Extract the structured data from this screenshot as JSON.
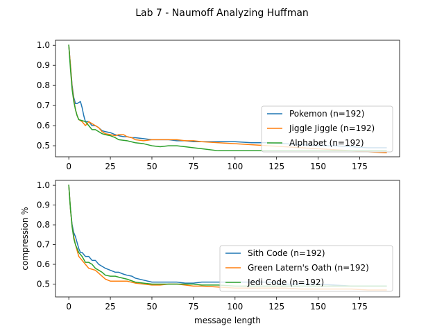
{
  "figure": {
    "suptitle": "Lab 7 - Naumoff Analyzing Huffman"
  },
  "chart_data": [
    {
      "type": "line",
      "title": "",
      "xlabel": "",
      "ylabel": "",
      "xlim": [
        -8,
        199
      ],
      "ylim": [
        0.445,
        1.025
      ],
      "xticks": [
        0,
        25,
        50,
        75,
        100,
        125,
        150,
        175
      ],
      "yticks": [
        0.5,
        0.6,
        0.7,
        0.8,
        0.9,
        1.0
      ],
      "ytick_labels": [
        "0.5",
        "0.6",
        "0.7",
        "0.8",
        "0.9",
        "1.0"
      ],
      "legend_position": "lower-right",
      "series": [
        {
          "name": "Pokemon (n=192)",
          "color": "#1f77b4",
          "points": [
            [
              0,
              1.0
            ],
            [
              1,
              0.9
            ],
            [
              2,
              0.8
            ],
            [
              3,
              0.74
            ],
            [
              4,
              0.71
            ],
            [
              5,
              0.71
            ],
            [
              6,
              0.715
            ],
            [
              7,
              0.72
            ],
            [
              8,
              0.69
            ],
            [
              9,
              0.65
            ],
            [
              10,
              0.62
            ],
            [
              12,
              0.62
            ],
            [
              14,
              0.6
            ],
            [
              16,
              0.6
            ],
            [
              18,
              0.59
            ],
            [
              20,
              0.575
            ],
            [
              22,
              0.57
            ],
            [
              25,
              0.565
            ],
            [
              28,
              0.555
            ],
            [
              30,
              0.55
            ],
            [
              33,
              0.545
            ],
            [
              35,
              0.545
            ],
            [
              38,
              0.54
            ],
            [
              40,
              0.54
            ],
            [
              45,
              0.535
            ],
            [
              50,
              0.53
            ],
            [
              55,
              0.53
            ],
            [
              60,
              0.53
            ],
            [
              65,
              0.525
            ],
            [
              70,
              0.525
            ],
            [
              75,
              0.52
            ],
            [
              80,
              0.52
            ],
            [
              90,
              0.52
            ],
            [
              100,
              0.52
            ],
            [
              110,
              0.515
            ],
            [
              120,
              0.515
            ],
            [
              130,
              0.51
            ],
            [
              140,
              0.505
            ],
            [
              150,
              0.5
            ],
            [
              160,
              0.5
            ],
            [
              170,
              0.495
            ],
            [
              180,
              0.49
            ],
            [
              191,
              0.49
            ]
          ]
        },
        {
          "name": "Jiggle Jiggle (n=192)",
          "color": "#ff7f0e",
          "points": [
            [
              0,
              1.0
            ],
            [
              1,
              0.9
            ],
            [
              2,
              0.79
            ],
            [
              3,
              0.73
            ],
            [
              4,
              0.68
            ],
            [
              5,
              0.65
            ],
            [
              6,
              0.63
            ],
            [
              8,
              0.62
            ],
            [
              10,
              0.6
            ],
            [
              12,
              0.62
            ],
            [
              14,
              0.61
            ],
            [
              16,
              0.6
            ],
            [
              18,
              0.59
            ],
            [
              20,
              0.57
            ],
            [
              22,
              0.56
            ],
            [
              25,
              0.555
            ],
            [
              28,
              0.55
            ],
            [
              30,
              0.555
            ],
            [
              33,
              0.555
            ],
            [
              35,
              0.545
            ],
            [
              38,
              0.54
            ],
            [
              40,
              0.53
            ],
            [
              45,
              0.525
            ],
            [
              50,
              0.53
            ],
            [
              55,
              0.53
            ],
            [
              60,
              0.53
            ],
            [
              65,
              0.53
            ],
            [
              70,
              0.525
            ],
            [
              75,
              0.525
            ],
            [
              80,
              0.52
            ],
            [
              90,
              0.515
            ],
            [
              100,
              0.51
            ],
            [
              110,
              0.505
            ],
            [
              120,
              0.5
            ],
            [
              130,
              0.495
            ],
            [
              140,
              0.49
            ],
            [
              150,
              0.485
            ],
            [
              160,
              0.48
            ],
            [
              170,
              0.475
            ],
            [
              180,
              0.47
            ],
            [
              191,
              0.465
            ]
          ]
        },
        {
          "name": "Alphabet (n=192)",
          "color": "#2ca02c",
          "points": [
            [
              0,
              1.0
            ],
            [
              1,
              0.88
            ],
            [
              2,
              0.78
            ],
            [
              3,
              0.72
            ],
            [
              4,
              0.68
            ],
            [
              5,
              0.65
            ],
            [
              6,
              0.63
            ],
            [
              8,
              0.625
            ],
            [
              10,
              0.62
            ],
            [
              12,
              0.6
            ],
            [
              14,
              0.58
            ],
            [
              16,
              0.58
            ],
            [
              18,
              0.57
            ],
            [
              20,
              0.56
            ],
            [
              22,
              0.555
            ],
            [
              25,
              0.55
            ],
            [
              28,
              0.54
            ],
            [
              30,
              0.53
            ],
            [
              35,
              0.525
            ],
            [
              40,
              0.515
            ],
            [
              45,
              0.51
            ],
            [
              50,
              0.5
            ],
            [
              55,
              0.495
            ],
            [
              60,
              0.5
            ],
            [
              65,
              0.5
            ],
            [
              70,
              0.495
            ],
            [
              75,
              0.49
            ],
            [
              80,
              0.485
            ],
            [
              90,
              0.475
            ],
            [
              100,
              0.475
            ],
            [
              110,
              0.475
            ],
            [
              120,
              0.475
            ],
            [
              130,
              0.475
            ],
            [
              140,
              0.475
            ],
            [
              150,
              0.475
            ],
            [
              160,
              0.475
            ],
            [
              170,
              0.475
            ],
            [
              180,
              0.475
            ],
            [
              191,
              0.475
            ]
          ]
        }
      ]
    },
    {
      "type": "line",
      "title": "",
      "xlabel": "message length",
      "ylabel": "compression %",
      "xlim": [
        -8,
        199
      ],
      "ylim": [
        0.435,
        1.025
      ],
      "xticks": [
        0,
        25,
        50,
        75,
        100,
        125,
        150,
        175
      ],
      "yticks": [
        0.5,
        0.6,
        0.7,
        0.8,
        0.9,
        1.0
      ],
      "ytick_labels": [
        "0.5",
        "0.6",
        "0.7",
        "0.8",
        "0.9",
        "1.0"
      ],
      "legend_position": "lower-right",
      "series": [
        {
          "name": "Sith Code (n=192)",
          "color": "#1f77b4",
          "points": [
            [
              0,
              1.0
            ],
            [
              1,
              0.88
            ],
            [
              2,
              0.8
            ],
            [
              3,
              0.76
            ],
            [
              4,
              0.74
            ],
            [
              5,
              0.71
            ],
            [
              6,
              0.68
            ],
            [
              7,
              0.66
            ],
            [
              8,
              0.66
            ],
            [
              10,
              0.64
            ],
            [
              12,
              0.64
            ],
            [
              14,
              0.62
            ],
            [
              16,
              0.62
            ],
            [
              18,
              0.6
            ],
            [
              20,
              0.59
            ],
            [
              22,
              0.58
            ],
            [
              25,
              0.57
            ],
            [
              28,
              0.56
            ],
            [
              30,
              0.56
            ],
            [
              33,
              0.55
            ],
            [
              35,
              0.545
            ],
            [
              38,
              0.54
            ],
            [
              40,
              0.53
            ],
            [
              45,
              0.52
            ],
            [
              50,
              0.51
            ],
            [
              55,
              0.51
            ],
            [
              60,
              0.51
            ],
            [
              65,
              0.51
            ],
            [
              70,
              0.505
            ],
            [
              75,
              0.505
            ],
            [
              80,
              0.51
            ],
            [
              90,
              0.51
            ],
            [
              100,
              0.51
            ],
            [
              110,
              0.51
            ],
            [
              120,
              0.51
            ],
            [
              130,
              0.5
            ],
            [
              140,
              0.5
            ],
            [
              150,
              0.5
            ],
            [
              160,
              0.495
            ],
            [
              170,
              0.49
            ],
            [
              180,
              0.49
            ],
            [
              191,
              0.49
            ]
          ]
        },
        {
          "name": "Green Latern's Oath (n=192)",
          "color": "#ff7f0e",
          "points": [
            [
              0,
              1.0
            ],
            [
              1,
              0.88
            ],
            [
              2,
              0.79
            ],
            [
              3,
              0.74
            ],
            [
              4,
              0.7
            ],
            [
              5,
              0.67
            ],
            [
              6,
              0.64
            ],
            [
              8,
              0.62
            ],
            [
              10,
              0.6
            ],
            [
              12,
              0.58
            ],
            [
              14,
              0.575
            ],
            [
              16,
              0.57
            ],
            [
              18,
              0.555
            ],
            [
              20,
              0.54
            ],
            [
              22,
              0.525
            ],
            [
              25,
              0.515
            ],
            [
              28,
              0.515
            ],
            [
              30,
              0.515
            ],
            [
              35,
              0.515
            ],
            [
              40,
              0.505
            ],
            [
              45,
              0.5
            ],
            [
              50,
              0.495
            ],
            [
              55,
              0.495
            ],
            [
              60,
              0.5
            ],
            [
              65,
              0.5
            ],
            [
              70,
              0.495
            ],
            [
              75,
              0.49
            ],
            [
              80,
              0.49
            ],
            [
              90,
              0.485
            ],
            [
              100,
              0.48
            ],
            [
              110,
              0.48
            ],
            [
              120,
              0.48
            ],
            [
              130,
              0.48
            ],
            [
              140,
              0.475
            ],
            [
              150,
              0.475
            ],
            [
              160,
              0.475
            ],
            [
              170,
              0.475
            ],
            [
              180,
              0.47
            ],
            [
              191,
              0.47
            ]
          ]
        },
        {
          "name": "Jedi Code (n=192)",
          "color": "#2ca02c",
          "points": [
            [
              0,
              1.0
            ],
            [
              1,
              0.88
            ],
            [
              2,
              0.79
            ],
            [
              3,
              0.73
            ],
            [
              4,
              0.7
            ],
            [
              5,
              0.68
            ],
            [
              6,
              0.66
            ],
            [
              8,
              0.64
            ],
            [
              10,
              0.61
            ],
            [
              12,
              0.61
            ],
            [
              14,
              0.6
            ],
            [
              16,
              0.58
            ],
            [
              18,
              0.57
            ],
            [
              20,
              0.56
            ],
            [
              22,
              0.545
            ],
            [
              25,
              0.54
            ],
            [
              28,
              0.54
            ],
            [
              30,
              0.535
            ],
            [
              35,
              0.525
            ],
            [
              40,
              0.51
            ],
            [
              45,
              0.505
            ],
            [
              50,
              0.5
            ],
            [
              55,
              0.5
            ],
            [
              60,
              0.5
            ],
            [
              65,
              0.5
            ],
            [
              70,
              0.5
            ],
            [
              75,
              0.5
            ],
            [
              80,
              0.495
            ],
            [
              90,
              0.495
            ],
            [
              100,
              0.49
            ],
            [
              110,
              0.49
            ],
            [
              120,
              0.49
            ],
            [
              130,
              0.49
            ],
            [
              140,
              0.49
            ],
            [
              150,
              0.49
            ],
            [
              160,
              0.49
            ],
            [
              170,
              0.49
            ],
            [
              180,
              0.49
            ],
            [
              191,
              0.49
            ]
          ]
        }
      ]
    }
  ]
}
